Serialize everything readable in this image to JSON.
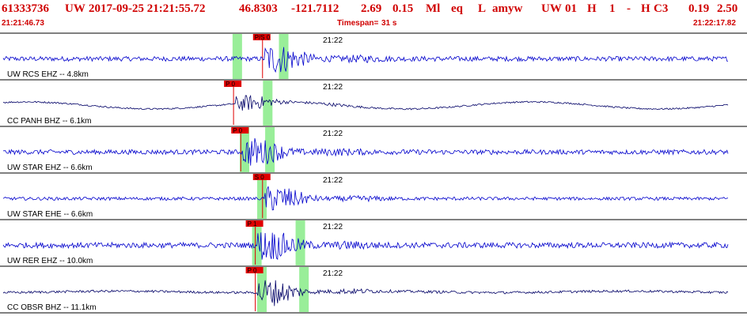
{
  "header": {
    "event_id": "61333736",
    "network": "UW",
    "datetime": "2017-09-25 21:21:55.72",
    "lat": "46.8303",
    "lon": "-121.7112",
    "depth": "2.69",
    "mag": "0.15",
    "mag_type": "Ml",
    "event_type": "eq",
    "status": "L",
    "author": "amyw",
    "sub_src": "UW",
    "version": "01",
    "gtype": "H",
    "qual": "1",
    "dash": "-",
    "qual2": "H",
    "c3": "C3",
    "rms": "0.19",
    "erh": "2.50"
  },
  "subheader": {
    "start_time": "21:21:46.73",
    "timespan_label": "Timespan=",
    "timespan_value": "31 s",
    "end_time": "21:22:17.82"
  },
  "colors": {
    "header_text": "#d00000",
    "trace_primary": "#0000cc",
    "trace_secondary": "#000066",
    "pick_flag": "#e00000",
    "window_fill": "#99ee99",
    "separator": "#000000"
  },
  "traces": [
    {
      "label": "UW RCS EHZ -- 4.8km",
      "time_mark": "21:22",
      "pick_label": "P/S 0",
      "color_key": "trace_primary",
      "onset": 0.36,
      "amp": 1.0,
      "noise": 0.12,
      "windows": [
        0.323,
        0.387
      ]
    },
    {
      "label": "CC PANH BHZ -- 6.1km",
      "time_mark": "21:22",
      "pick_label": "P 0",
      "color_key": "trace_secondary",
      "onset": 0.32,
      "amp": 0.55,
      "noise": 0.04,
      "windows": [
        0.365
      ]
    },
    {
      "label": "UW STAR EHZ -- 6.6km",
      "time_mark": "21:22",
      "pick_label": "P 0",
      "color_key": "trace_primary",
      "onset": 0.33,
      "amp": 0.95,
      "noise": 0.12,
      "windows": [
        0.333,
        0.368
      ]
    },
    {
      "label": "UW STAR EHE -- 6.6km",
      "time_mark": "21:22",
      "pick_label": "S 0",
      "color_key": "trace_primary",
      "onset": 0.36,
      "amp": 0.9,
      "noise": 0.08,
      "windows": [
        0.357
      ]
    },
    {
      "label": "UW RER EHZ -- 10.0km",
      "time_mark": "21:22",
      "pick_label": "P 1",
      "color_key": "trace_primary",
      "onset": 0.35,
      "amp": 1.0,
      "noise": 0.14,
      "windows": [
        0.35,
        0.41
      ]
    },
    {
      "label": "CC OBSR BHZ -- 11.1km",
      "time_mark": "21:22",
      "pick_label": "P 0",
      "color_key": "trace_secondary",
      "onset": 0.35,
      "amp": 1.0,
      "noise": 0.06,
      "windows": [
        0.357,
        0.415
      ]
    }
  ]
}
